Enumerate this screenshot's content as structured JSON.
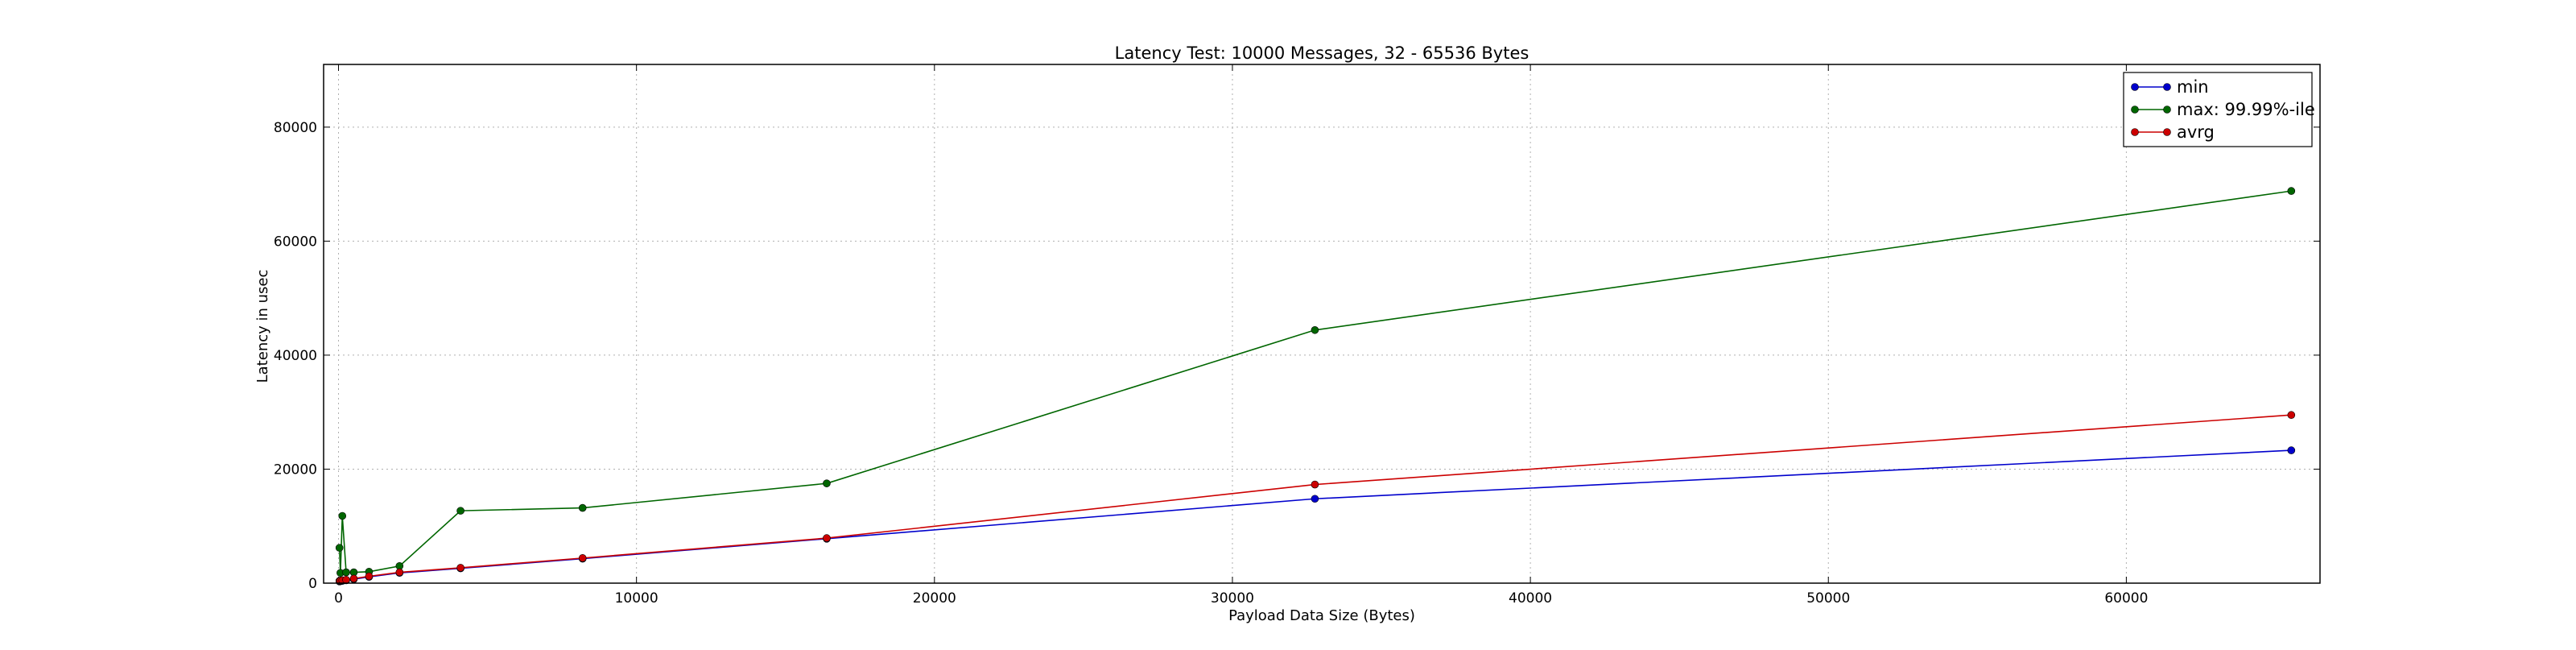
{
  "chart_data": {
    "type": "line",
    "title": "Latency Test: 10000 Messages, 32 - 65536 Bytes",
    "xlabel": "Payload Data Size (Bytes)",
    "ylabel": "Latency in usec",
    "xlim": [
      -500,
      66500
    ],
    "ylim": [
      0,
      91000
    ],
    "xticks": [
      0,
      10000,
      20000,
      30000,
      40000,
      50000,
      60000
    ],
    "yticks": [
      0,
      20000,
      40000,
      60000,
      80000
    ],
    "grid": true,
    "legend_position": "top-right",
    "series": [
      {
        "name": "min",
        "color": "#0000cc",
        "x": [
          32,
          64,
          128,
          256,
          512,
          1024,
          2048,
          4096,
          8192,
          16384,
          32768,
          65536
        ],
        "y": [
          300,
          350,
          400,
          500,
          700,
          1100,
          1800,
          2600,
          4300,
          7800,
          14800,
          23300
        ]
      },
      {
        "name": "max: 99.99%-ile",
        "color": "#006600",
        "x": [
          32,
          64,
          128,
          256,
          512,
          1024,
          2048,
          4096,
          8192,
          16384,
          32768,
          65536
        ],
        "y": [
          6200,
          1800,
          11800,
          1900,
          1900,
          2000,
          3000,
          12700,
          13200,
          17500,
          44400,
          68800
        ]
      },
      {
        "name": "avrg",
        "color": "#cc0000",
        "x": [
          32,
          64,
          128,
          256,
          512,
          1024,
          2048,
          4096,
          8192,
          16384,
          32768,
          65536
        ],
        "y": [
          400,
          450,
          500,
          600,
          800,
          1200,
          1900,
          2700,
          4400,
          7900,
          17300,
          29500
        ]
      }
    ]
  },
  "colors": {
    "grid": "#b0b0b0",
    "axes": "#000000",
    "legend_border": "#000000"
  }
}
